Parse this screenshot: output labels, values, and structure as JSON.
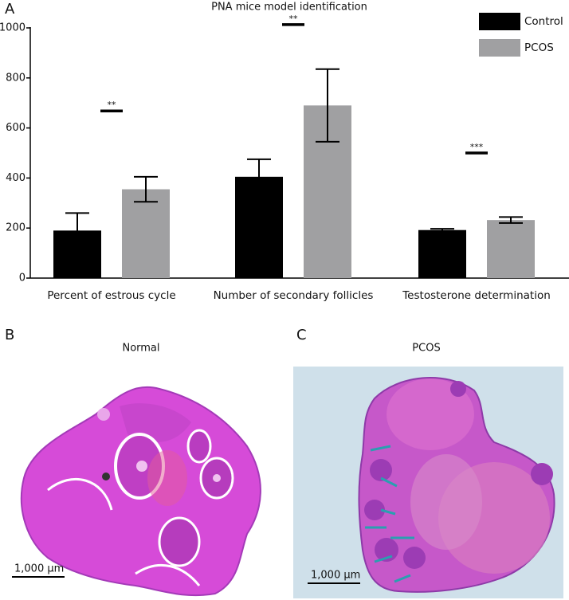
{
  "chart_data": {
    "type": "bar",
    "title": "PNA mice model identification",
    "panel_label": "A",
    "categories": [
      "Percent of estrous cycle",
      "Number of secondary follicles",
      "Testosterone determination"
    ],
    "series": [
      {
        "name": "Control",
        "color": "#000000",
        "values": [
          190,
          405,
          192
        ],
        "errors": [
          70,
          70,
          5
        ]
      },
      {
        "name": "PCOS",
        "color": "#a0a0a2",
        "values": [
          355,
          690,
          232
        ],
        "errors": [
          50,
          145,
          12
        ]
      }
    ],
    "significance": [
      "**",
      "**",
      "***"
    ],
    "significance_y": [
      668,
      1013,
      500
    ],
    "ylim": [
      0,
      1000
    ],
    "yticks": [
      0,
      200,
      400,
      600,
      800,
      1000
    ],
    "legend": "upper right"
  },
  "panels": [
    {
      "label": "B",
      "caption": "Normal",
      "scale_bar": "1,000 µm"
    },
    {
      "label": "C",
      "caption": "PCOS",
      "scale_bar": "1,000 µm"
    }
  ]
}
